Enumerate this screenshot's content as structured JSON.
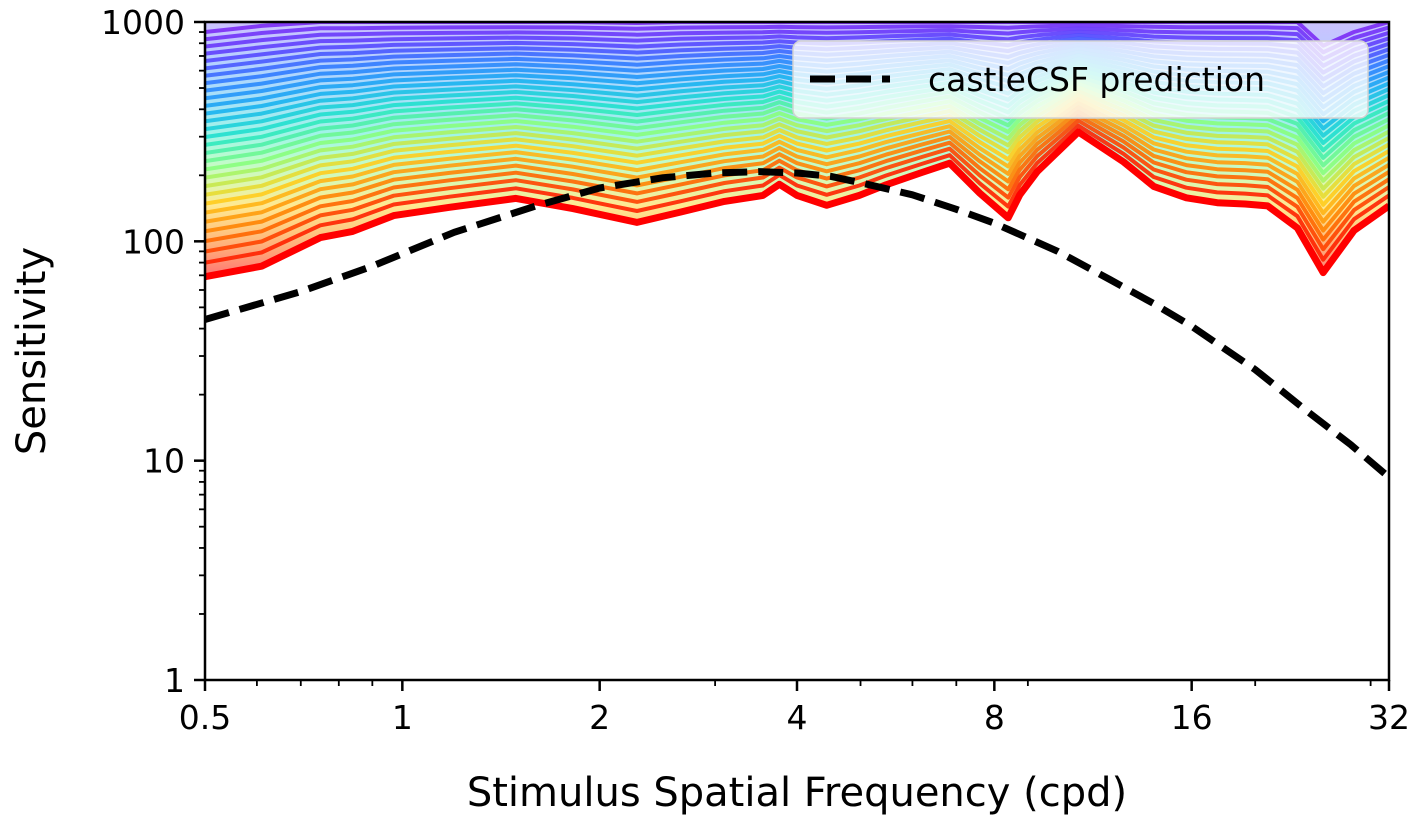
{
  "chart_data": {
    "type": "line",
    "title": "",
    "xlabel": "Stimulus Spatial Frequency (cpd)",
    "ylabel": "Sensitivity",
    "x_scale": "log2",
    "y_scale": "log10",
    "xlim": [
      0.5,
      32
    ],
    "ylim": [
      1,
      1000
    ],
    "x_ticks": [
      0.5,
      1,
      2,
      4,
      8,
      16,
      32
    ],
    "x_tick_labels": [
      "0.5",
      "1",
      "2",
      "4",
      "8",
      "16",
      "32"
    ],
    "y_ticks": [
      1,
      10,
      100,
      1000
    ],
    "y_tick_labels": [
      "1",
      "10",
      "100",
      "1000"
    ],
    "grid": false,
    "legend": {
      "position": "top-right",
      "entries": [
        "castleCSF prediction"
      ]
    },
    "x": [
      0.5,
      0.61,
      0.75,
      0.84,
      0.97,
      1.18,
      1.49,
      1.82,
      2.28,
      2.66,
      3.1,
      3.55,
      3.76,
      4.0,
      4.44,
      4.98,
      5.47,
      6.2,
      6.84,
      7.6,
      8.4,
      8.75,
      9.3,
      10.75,
      12.6,
      14.0,
      15.7,
      17.5,
      19.3,
      20.9,
      23.2,
      25.4,
      28.3,
      32.0
    ],
    "lower_envelope": [
      69,
      77,
      104,
      111,
      131,
      143,
      157,
      141,
      122,
      136,
      152,
      162,
      182,
      162,
      146,
      162,
      181,
      206,
      227,
      166,
      128,
      163,
      208,
      315,
      230,
      178,
      158,
      150,
      148,
      145,
      115,
      72,
      112,
      145
    ],
    "upper_envelope": [
      900,
      960,
      1000,
      1000,
      1000,
      1000,
      1000,
      1000,
      990,
      1000,
      1000,
      1000,
      1000,
      1000,
      1000,
      1000,
      1000,
      1000,
      1000,
      1000,
      1000,
      1000,
      1000,
      1000,
      1000,
      1000,
      1000,
      1000,
      1000,
      1000,
      1000,
      780,
      900,
      1000
    ],
    "band_count": 30,
    "band_colors": [
      "#ff0000",
      "#ff7b00",
      "#ffd21f",
      "#8cff7a",
      "#22e6c8",
      "#19b0f0",
      "#2e7fff",
      "#5a44ff",
      "#7b2cf5"
    ],
    "series": [
      {
        "name": "castleCSF prediction",
        "style": "dashed",
        "color": "#000000",
        "x": [
          0.5,
          0.7,
          0.9,
          1.2,
          1.6,
          2.0,
          2.5,
          3.0,
          3.5,
          4.0,
          4.5,
          5.0,
          6.0,
          7.0,
          8.0,
          10.0,
          12.0,
          14.0,
          16.0,
          20.0,
          24.0,
          28.0,
          32.0
        ],
        "values": [
          44,
          59,
          77,
          110,
          145,
          175,
          195,
          205,
          208,
          205,
          198,
          185,
          163,
          140,
          121,
          90,
          67,
          52,
          41,
          26,
          16.8,
          11.8,
          8.4
        ]
      }
    ]
  }
}
